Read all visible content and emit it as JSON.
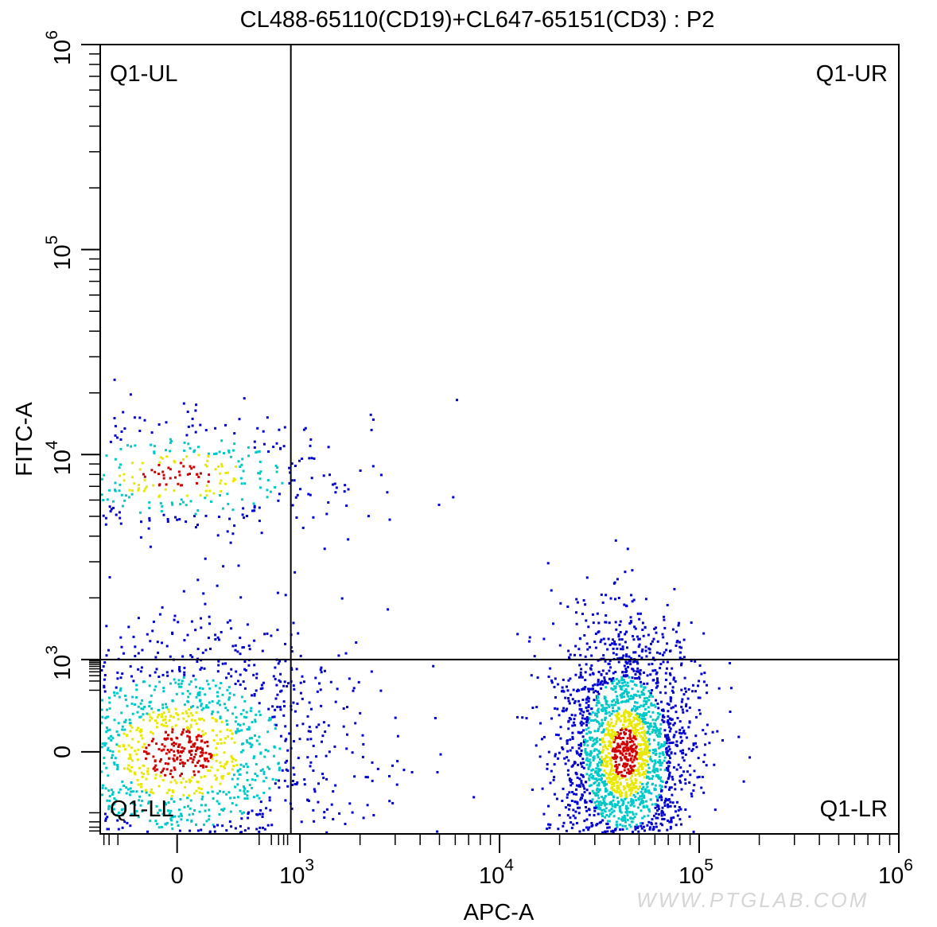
{
  "chart_data": {
    "type": "scatter",
    "title": "CL488-65110(CD19)+CL647-65151(CD3) : P2",
    "xlabel": "APC-A",
    "ylabel": "FITC-A",
    "x_scale": "biexponential",
    "y_scale": "biexponential",
    "xlim": [
      -400,
      1000000
    ],
    "ylim": [
      -500,
      1000000
    ],
    "x_ticks": [
      {
        "value": 0,
        "base": "0",
        "exp": ""
      },
      {
        "value": 1000,
        "base": "10",
        "exp": "3"
      },
      {
        "value": 10000,
        "base": "10",
        "exp": "4"
      },
      {
        "value": 100000,
        "base": "10",
        "exp": "5"
      },
      {
        "value": 1000000,
        "base": "10",
        "exp": "6"
      }
    ],
    "y_ticks": [
      {
        "value": 0,
        "base": "0",
        "exp": ""
      },
      {
        "value": 1000,
        "base": "10",
        "exp": "3"
      },
      {
        "value": 10000,
        "base": "10",
        "exp": "4"
      },
      {
        "value": 100000,
        "base": "10",
        "exp": "5"
      },
      {
        "value": 1000000,
        "base": "10",
        "exp": "6"
      }
    ],
    "gate": {
      "x": 600,
      "y": 1000
    },
    "quadrants": {
      "UL": "Q1-UL",
      "UR": "Q1-UR",
      "LL": "Q1-LL",
      "LR": "Q1-LR"
    },
    "clusters": [
      {
        "quadrant": "LL",
        "n": 1700,
        "center_x": 0,
        "center_y": 0,
        "spread_x": 130,
        "spread_y": 120
      },
      {
        "quadrant": "LR",
        "n": 2400,
        "center_x": 42000,
        "center_y": 0,
        "spread_x_log": 0.17,
        "spread_y": 110
      },
      {
        "quadrant": "UL",
        "n": 420,
        "center_x": 0,
        "center_y": 8000,
        "spread_x": 150,
        "spread_y_log": 0.16
      }
    ],
    "outliers": [
      {
        "x": 2300,
        "y": 15000
      },
      {
        "x": 1300,
        "y": 8000
      },
      {
        "x": 1650,
        "y": 6700
      },
      {
        "x": 1150,
        "y": 5000
      },
      {
        "x": 700,
        "y": 2700
      },
      {
        "x": 32000,
        "y": 2100
      },
      {
        "x": 14000,
        "y": 1300
      },
      {
        "x": 52000,
        "y": 1320
      }
    ],
    "colors": {
      "low": "#0000d0",
      "mid": "#00c8c8",
      "high": "#e8e800",
      "peak": "#d00000"
    },
    "grid": false,
    "legend": "none"
  },
  "watermark": "WWW.PTGLAB.COM"
}
